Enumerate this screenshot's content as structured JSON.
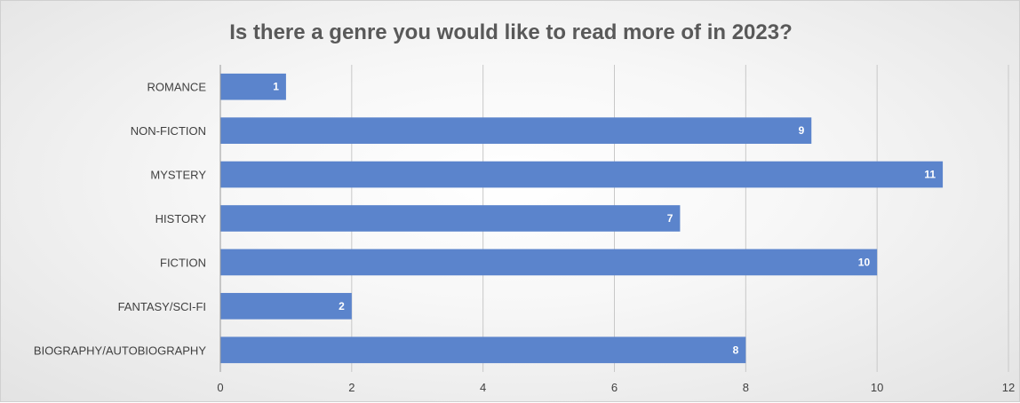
{
  "chart_data": {
    "type": "bar",
    "orientation": "horizontal",
    "title": "Is there a genre you would like to read more of in 2023?",
    "categories": [
      "ROMANCE",
      "NON-FICTION",
      "MYSTERY",
      "HISTORY",
      "FICTION",
      "FANTASY/SCI-FI",
      "BIOGRAPHY/AUTOBIOGRAPHY"
    ],
    "values": [
      1,
      9,
      11,
      7,
      10,
      2,
      8
    ],
    "xlim": [
      0,
      12
    ],
    "xticks": [
      0,
      2,
      4,
      6,
      8,
      10,
      12
    ],
    "grid": true,
    "data_labels": true,
    "xlabel": "",
    "ylabel": "",
    "bar_color": "#5b84cc"
  }
}
